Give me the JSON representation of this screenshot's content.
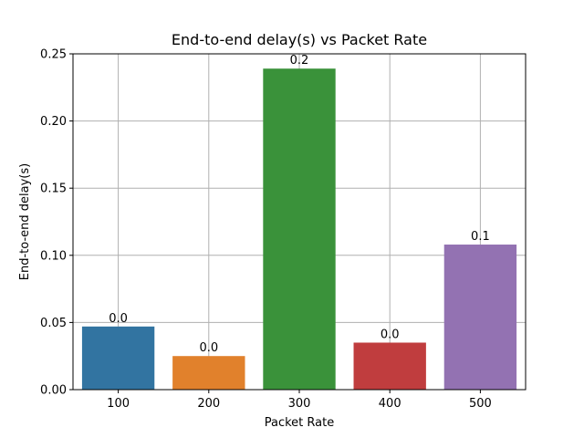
{
  "chart_data": {
    "type": "bar",
    "title": "End-to-end delay(s) vs Packet Rate",
    "xlabel": "Packet Rate",
    "ylabel": "End-to-end delay(s)",
    "categories": [
      "100",
      "200",
      "300",
      "400",
      "500"
    ],
    "values": [
      0.047,
      0.025,
      0.239,
      0.035,
      0.108
    ],
    "bar_labels": [
      "0.0",
      "0.0",
      "0.2",
      "0.0",
      "0.1"
    ],
    "colors": [
      "#3274a1",
      "#e1812c",
      "#3a923a",
      "#c03d3e",
      "#9372b2"
    ],
    "ylim": [
      0,
      0.25
    ],
    "yticks": [
      0.0,
      0.05,
      0.1,
      0.15,
      0.2,
      0.25
    ],
    "ytick_labels": [
      "0.00",
      "0.05",
      "0.10",
      "0.15",
      "0.20",
      "0.25"
    ],
    "grid": true,
    "grid_color": "#b0b0b0"
  }
}
